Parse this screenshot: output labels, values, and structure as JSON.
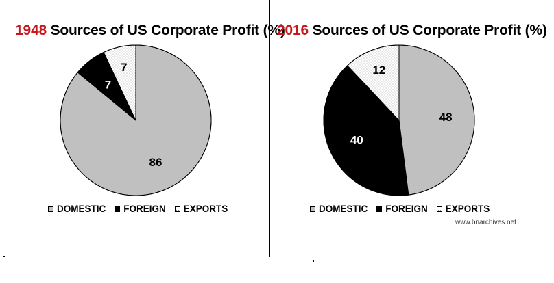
{
  "colors": {
    "domestic": "#c0c0c0",
    "foreign": "#000000",
    "exports_background": "#ffffff",
    "exports_dots": "#888888",
    "year_accent": "#c8161e"
  },
  "chart_data": [
    {
      "type": "pie",
      "year": "1948",
      "title": "Sources of US Corporate Profit (%)",
      "slices": [
        {
          "label": "DOMESTIC",
          "value": 86,
          "value_label": "86"
        },
        {
          "label": "FOREIGN",
          "value": 7,
          "value_label": "7"
        },
        {
          "label": "EXPORTS",
          "value": 7,
          "value_label": "7"
        }
      ],
      "legend": [
        "DOMESTIC",
        "FOREIGN",
        "EXPORTS"
      ],
      "legend_position": "bottom"
    },
    {
      "type": "pie",
      "year": "2016",
      "title": "Sources of US Corporate Profit (%)",
      "slices": [
        {
          "label": "DOMESTIC",
          "value": 48,
          "value_label": "48"
        },
        {
          "label": "FOREIGN",
          "value": 40,
          "value_label": "40"
        },
        {
          "label": "EXPORTS",
          "value": 12,
          "value_label": "12"
        }
      ],
      "legend": [
        "DOMESTIC",
        "FOREIGN",
        "EXPORTS"
      ],
      "legend_position": "bottom"
    }
  ],
  "source": "www.bnarchives.net"
}
